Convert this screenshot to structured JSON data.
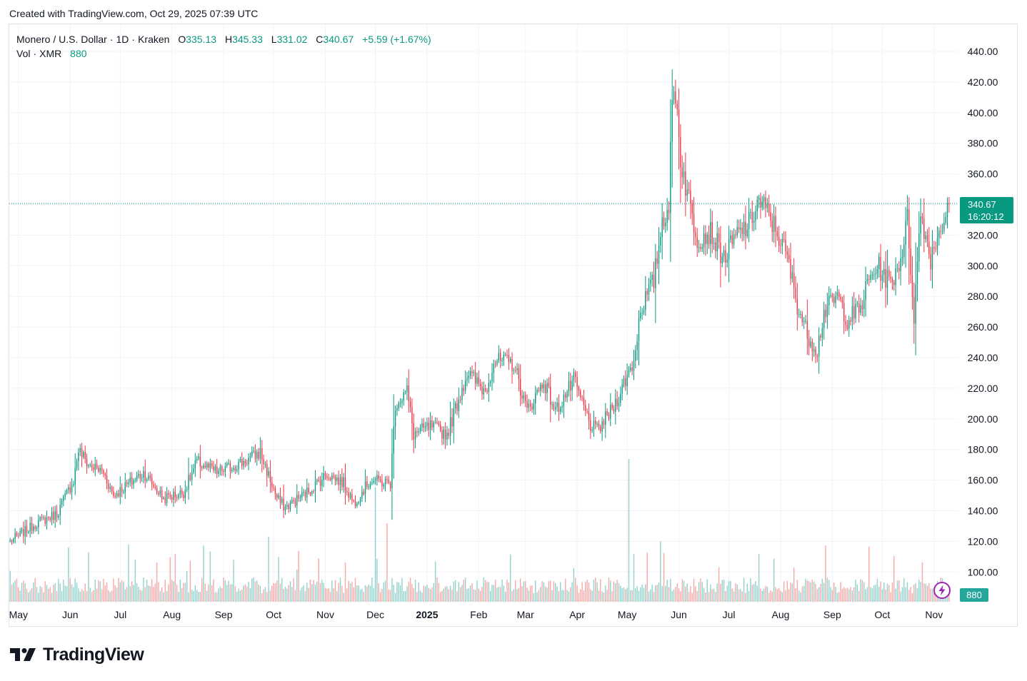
{
  "caption": "Created with TradingView.com, Oct 29, 2025 07:39 UTC",
  "legend": {
    "symbol": "Monero / U.S. Dollar",
    "interval": "1D",
    "exchange": "Kraken",
    "open_label": "O",
    "open": "335.13",
    "high_label": "H",
    "high": "345.33",
    "low_label": "L",
    "low": "331.02",
    "close_label": "C",
    "close": "340.67",
    "change": "+5.59 (+1.67%)",
    "vol_label": "Vol",
    "vol_symbol": "XMR",
    "vol_value": "880"
  },
  "price_tag": {
    "price": "340.67",
    "countdown": "16:20:12"
  },
  "volume_tag": "880",
  "logo_text": "TradingView",
  "colors": {
    "up": "#089981",
    "down": "#f23645",
    "vol_up": "#26a69a",
    "vol_down": "#ef5350",
    "grid": "#f0f3fa"
  },
  "chart_data": {
    "type": "candlestick",
    "title": "Monero / U.S. Dollar · 1D · Kraken",
    "yaxis": {
      "ticks": [
        100,
        120,
        140,
        160,
        180,
        200,
        220,
        240,
        260,
        280,
        300,
        320,
        340,
        360,
        380,
        400,
        420,
        440
      ],
      "ylim": [
        80,
        445
      ]
    },
    "xaxis": {
      "labels": [
        "May",
        "Jun",
        "Jul",
        "Aug",
        "Sep",
        "Oct",
        "Nov",
        "Dec",
        "2025",
        "Feb",
        "Mar",
        "Apr",
        "May",
        "Jun",
        "Jul",
        "Aug",
        "Sep",
        "Oct",
        "Nov"
      ],
      "label_days": [
        5,
        36,
        66,
        97,
        128,
        158,
        189,
        219,
        250,
        281,
        309,
        340,
        370,
        401,
        431,
        462,
        493,
        523,
        554
      ],
      "bold": [
        "2025"
      ]
    },
    "last_price": 340.67,
    "anchors": [
      [
        0,
        120
      ],
      [
        16,
        132
      ],
      [
        28,
        138
      ],
      [
        38,
        160
      ],
      [
        41,
        180
      ],
      [
        47,
        170
      ],
      [
        56,
        165
      ],
      [
        62,
        150
      ],
      [
        80,
        165
      ],
      [
        92,
        148
      ],
      [
        104,
        152
      ],
      [
        112,
        172
      ],
      [
        124,
        165
      ],
      [
        140,
        172
      ],
      [
        150,
        178
      ],
      [
        160,
        148
      ],
      [
        165,
        142
      ],
      [
        178,
        152
      ],
      [
        190,
        164
      ],
      [
        200,
        158
      ],
      [
        206,
        145
      ],
      [
        216,
        160
      ],
      [
        228,
        158
      ],
      [
        231,
        210
      ],
      [
        238,
        218
      ],
      [
        242,
        190
      ],
      [
        252,
        195
      ],
      [
        262,
        190
      ],
      [
        274,
        230
      ],
      [
        285,
        218
      ],
      [
        290,
        238
      ],
      [
        302,
        236
      ],
      [
        310,
        205
      ],
      [
        320,
        225
      ],
      [
        327,
        205
      ],
      [
        338,
        225
      ],
      [
        348,
        196
      ],
      [
        352,
        192
      ],
      [
        362,
        208
      ],
      [
        374,
        238
      ],
      [
        378,
        272
      ],
      [
        386,
        290
      ],
      [
        391,
        330
      ],
      [
        395,
        340
      ],
      [
        397,
        405
      ],
      [
        399,
        415
      ],
      [
        402,
        370
      ],
      [
        406,
        348
      ],
      [
        412,
        318
      ],
      [
        420,
        322
      ],
      [
        428,
        305
      ],
      [
        436,
        320
      ],
      [
        444,
        328
      ],
      [
        448,
        342
      ],
      [
        452,
        338
      ],
      [
        460,
        322
      ],
      [
        466,
        305
      ],
      [
        472,
        275
      ],
      [
        478,
        255
      ],
      [
        484,
        245
      ],
      [
        488,
        270
      ],
      [
        496,
        280
      ],
      [
        502,
        265
      ],
      [
        510,
        272
      ],
      [
        514,
        288
      ],
      [
        520,
        300
      ],
      [
        528,
        288
      ],
      [
        534,
        305
      ],
      [
        538,
        330
      ],
      [
        542,
        268
      ],
      [
        546,
        335
      ],
      [
        552,
        305
      ],
      [
        556,
        320
      ],
      [
        560,
        331
      ],
      [
        563,
        340
      ]
    ]
  }
}
